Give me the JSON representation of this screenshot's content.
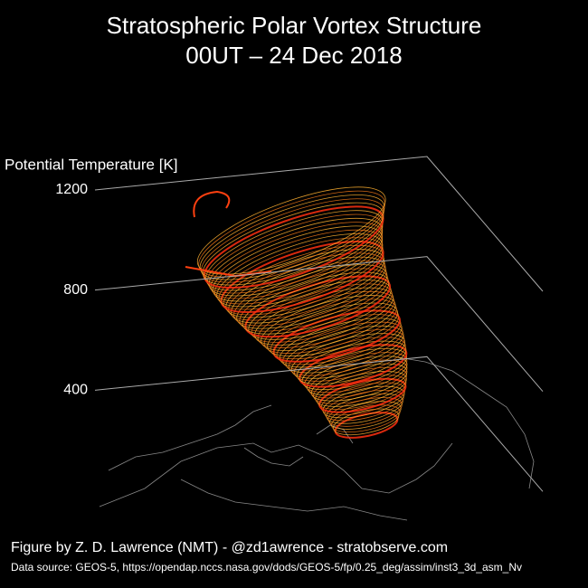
{
  "chart_data": {
    "type": "vortex3d",
    "title": "Stratospheric Polar Vortex Structure",
    "subtitle": "00UT – 24 Dec 2018",
    "zlabel": "Potential Temperature [K]",
    "zlim": [
      0,
      1200
    ],
    "zticks": [
      400,
      800,
      1200
    ],
    "credit": "Figure by Z. D. Lawrence (NMT) - @zd1awrence - stratobserve.com",
    "source": "Data source:  GEOS-5, https://opendap.nccs.nasa.gov/dods/GEOS-5/fp/0.25_deg/assim/inst3_3d_asm_Nv"
  }
}
